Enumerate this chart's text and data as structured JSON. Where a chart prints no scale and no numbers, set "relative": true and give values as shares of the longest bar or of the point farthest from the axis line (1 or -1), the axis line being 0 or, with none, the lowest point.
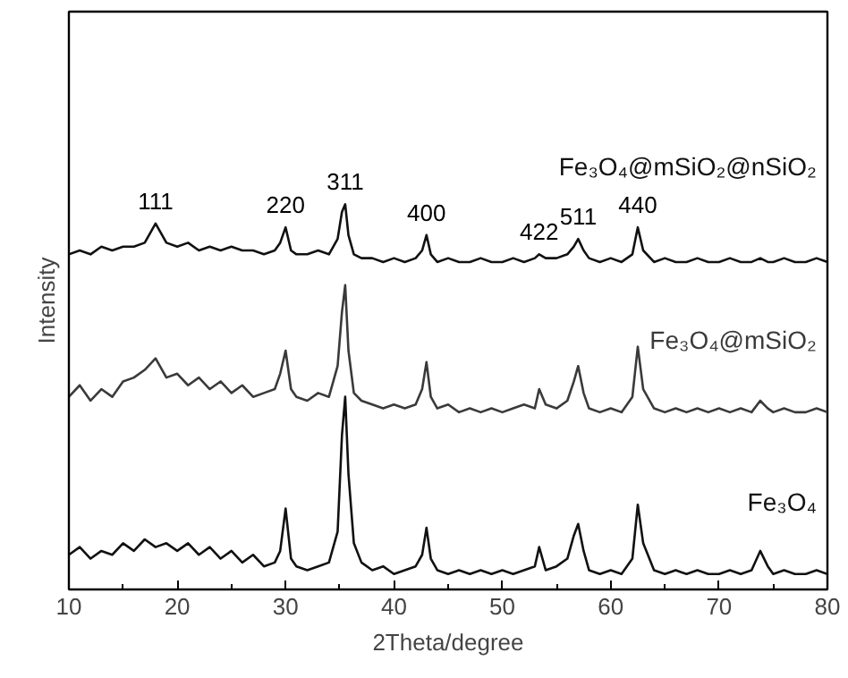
{
  "chart_data": {
    "type": "line",
    "relative": true,
    "xlabel": "2Theta/degree",
    "ylabel": "Intensity",
    "xlim": [
      10,
      80
    ],
    "xticks": [
      10,
      20,
      30,
      40,
      50,
      60,
      70,
      80
    ],
    "grid": false,
    "x": [
      10,
      11,
      12,
      13,
      14,
      15,
      16,
      17,
      18,
      19,
      20,
      21,
      22,
      23,
      24,
      25,
      26,
      27,
      28,
      29,
      29.5,
      30,
      30.5,
      31,
      32,
      33,
      34,
      34.8,
      35.2,
      35.5,
      35.8,
      36.3,
      37,
      38,
      39,
      40,
      41,
      42,
      42.6,
      43,
      43.4,
      44,
      45,
      46,
      47,
      48,
      49,
      50,
      51,
      52,
      53,
      53.4,
      54,
      55,
      56,
      56.6,
      57,
      57.5,
      58,
      59,
      60,
      61,
      62,
      62.5,
      63,
      64,
      65,
      66,
      67,
      68,
      69,
      70,
      71,
      72,
      73,
      73.8,
      74.5,
      75,
      76,
      77,
      78,
      79,
      80
    ],
    "series": [
      {
        "name": "Fe₃O₄@mSiO₂@nSiO₂",
        "color": "#111111",
        "values": [
          0.87,
          0.88,
          0.87,
          0.89,
          0.88,
          0.89,
          0.89,
          0.9,
          0.95,
          0.9,
          0.89,
          0.9,
          0.88,
          0.89,
          0.88,
          0.89,
          0.88,
          0.88,
          0.87,
          0.88,
          0.9,
          0.94,
          0.88,
          0.87,
          0.87,
          0.88,
          0.87,
          0.91,
          0.98,
          1.0,
          0.92,
          0.87,
          0.86,
          0.86,
          0.85,
          0.86,
          0.85,
          0.86,
          0.88,
          0.92,
          0.87,
          0.85,
          0.86,
          0.85,
          0.85,
          0.86,
          0.85,
          0.85,
          0.86,
          0.85,
          0.86,
          0.87,
          0.86,
          0.86,
          0.87,
          0.89,
          0.91,
          0.88,
          0.86,
          0.85,
          0.86,
          0.85,
          0.87,
          0.94,
          0.88,
          0.85,
          0.86,
          0.85,
          0.85,
          0.86,
          0.85,
          0.85,
          0.86,
          0.85,
          0.85,
          0.86,
          0.85,
          0.85,
          0.86,
          0.85,
          0.85,
          0.86,
          0.85
        ]
      },
      {
        "name": "Fe₃O₄@mSiO₂",
        "color": "#3a3a3a",
        "values": [
          0.5,
          0.53,
          0.49,
          0.52,
          0.5,
          0.54,
          0.55,
          0.57,
          0.6,
          0.55,
          0.56,
          0.53,
          0.55,
          0.52,
          0.54,
          0.51,
          0.53,
          0.5,
          0.51,
          0.52,
          0.56,
          0.62,
          0.52,
          0.5,
          0.49,
          0.51,
          0.5,
          0.58,
          0.72,
          0.79,
          0.62,
          0.51,
          0.49,
          0.48,
          0.47,
          0.48,
          0.47,
          0.48,
          0.52,
          0.59,
          0.5,
          0.47,
          0.48,
          0.46,
          0.47,
          0.46,
          0.47,
          0.46,
          0.47,
          0.48,
          0.47,
          0.52,
          0.48,
          0.47,
          0.49,
          0.54,
          0.58,
          0.51,
          0.47,
          0.46,
          0.47,
          0.46,
          0.5,
          0.63,
          0.52,
          0.47,
          0.46,
          0.47,
          0.46,
          0.47,
          0.46,
          0.47,
          0.46,
          0.47,
          0.46,
          0.49,
          0.47,
          0.46,
          0.47,
          0.46,
          0.46,
          0.47,
          0.46
        ]
      },
      {
        "name": "Fe₃O₄",
        "color": "#111111",
        "values": [
          0.09,
          0.11,
          0.08,
          0.1,
          0.09,
          0.12,
          0.1,
          0.13,
          0.11,
          0.12,
          0.1,
          0.12,
          0.09,
          0.11,
          0.08,
          0.1,
          0.07,
          0.09,
          0.06,
          0.07,
          0.1,
          0.21,
          0.08,
          0.06,
          0.05,
          0.06,
          0.07,
          0.15,
          0.4,
          0.5,
          0.3,
          0.12,
          0.07,
          0.05,
          0.06,
          0.04,
          0.05,
          0.06,
          0.09,
          0.16,
          0.08,
          0.05,
          0.04,
          0.05,
          0.04,
          0.05,
          0.04,
          0.05,
          0.04,
          0.05,
          0.06,
          0.11,
          0.05,
          0.06,
          0.08,
          0.14,
          0.17,
          0.1,
          0.05,
          0.04,
          0.05,
          0.04,
          0.08,
          0.22,
          0.12,
          0.05,
          0.04,
          0.05,
          0.04,
          0.05,
          0.04,
          0.04,
          0.05,
          0.04,
          0.05,
          0.1,
          0.06,
          0.04,
          0.05,
          0.04,
          0.04,
          0.05,
          0.04
        ]
      }
    ],
    "annotations": [
      {
        "text": "111",
        "x": 18,
        "y": 0.95
      },
      {
        "text": "220",
        "x": 30,
        "y": 0.94
      },
      {
        "text": "311",
        "x": 35.5,
        "y": 1.0
      },
      {
        "text": "400",
        "x": 43,
        "y": 0.92
      },
      {
        "text": "422",
        "x": 53.4,
        "y": 0.87
      },
      {
        "text": "511",
        "x": 57,
        "y": 0.91
      },
      {
        "text": "440",
        "x": 62.5,
        "y": 0.94
      }
    ]
  }
}
